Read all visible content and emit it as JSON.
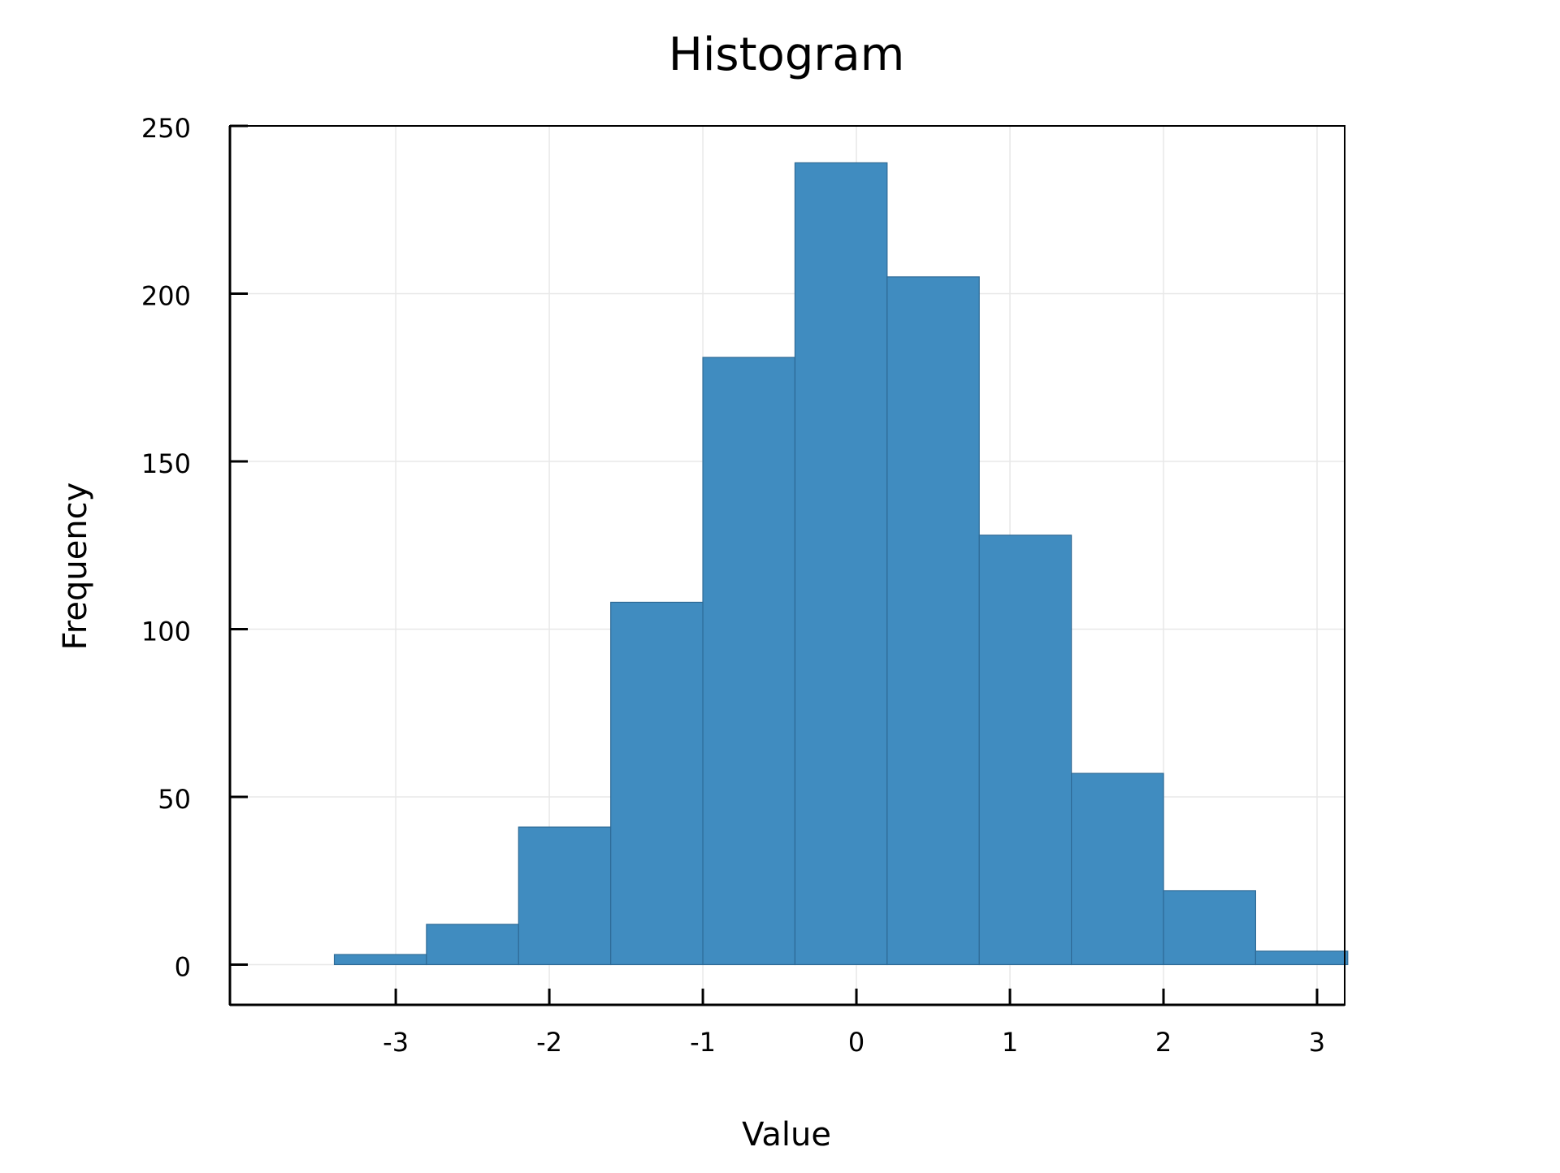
{
  "chart_data": {
    "type": "bar",
    "title": "Histogram",
    "xlabel": "Value",
    "ylabel": "Frequency",
    "bin_edges": [
      -3.4,
      -2.8,
      -2.2,
      -1.6,
      -1.0,
      -0.4,
      0.2,
      0.8,
      1.4,
      2.0,
      2.6,
      3.2
    ],
    "values": [
      3,
      12,
      41,
      108,
      181,
      239,
      205,
      128,
      57,
      22,
      4
    ],
    "xlim": [
      -4.08,
      3.18
    ],
    "ylim": [
      -12,
      250
    ],
    "xticks": [
      -3,
      -2,
      -1,
      0,
      1,
      2,
      3
    ],
    "xtick_labels": [
      "-3",
      "-2",
      "-1",
      "0",
      "1",
      "2",
      "3"
    ],
    "yticks": [
      0,
      50,
      100,
      150,
      200,
      250
    ],
    "ytick_labels": [
      "0",
      "50",
      "100",
      "150",
      "200",
      "250"
    ],
    "grid": true,
    "legend": "none",
    "colors": {
      "bar_fill": "#408cc0",
      "bar_edge": "#2e6a96",
      "grid": "#e8e8e8",
      "axis": "#000000"
    }
  }
}
